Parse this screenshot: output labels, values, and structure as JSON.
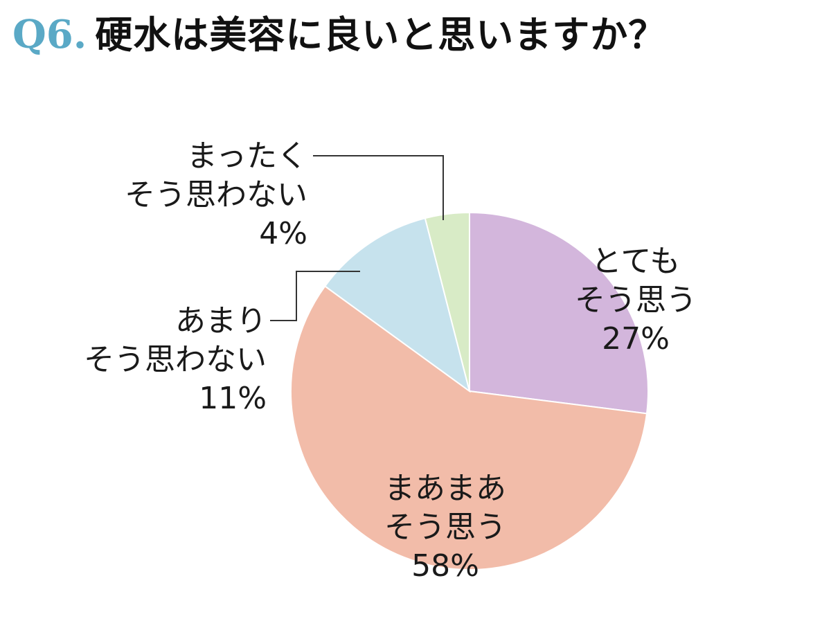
{
  "title": {
    "number": "Q6.",
    "question": "硬水は美容に良いと思いますか？"
  },
  "chart_data": {
    "type": "pie",
    "start_angle_deg": 0,
    "direction": "clockwise",
    "slices": [
      {
        "line1": "とても",
        "line2": "そう思う",
        "percent_label": "27%",
        "value": 27,
        "color": "#d3b6dc"
      },
      {
        "line1": "まあまあ",
        "line2": "そう思う",
        "percent_label": "58%",
        "value": 58,
        "color": "#f2bca9"
      },
      {
        "line1": "あまり",
        "line2": "そう思わない",
        "percent_label": "11%",
        "value": 11,
        "color": "#c6e2ed"
      },
      {
        "line1": "まったく",
        "line2": "そう思わない",
        "percent_label": "4%",
        "value": 4,
        "color": "#d8ebc6"
      }
    ]
  }
}
